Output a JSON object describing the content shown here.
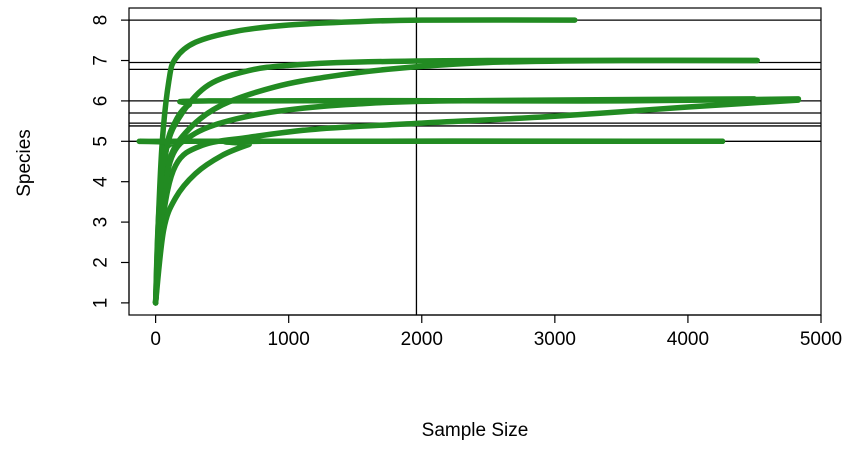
{
  "chart_data": {
    "type": "line",
    "title": "",
    "xlabel": "Sample Size",
    "ylabel": "Species",
    "xlim": [
      -200,
      5000
    ],
    "ylim": [
      0.7,
      8.3
    ],
    "x_ticks": [
      0,
      1000,
      2000,
      3000,
      4000,
      5000
    ],
    "y_ticks": [
      1,
      2,
      3,
      4,
      5,
      6,
      7,
      8
    ],
    "grid": false,
    "line_color": "#228B22",
    "reference_lines": {
      "vertical_x": [
        1960
      ],
      "horizontal_y": [
        8,
        6.95,
        6.78,
        6.0,
        5.7,
        5.45,
        5.38,
        5.0
      ]
    },
    "series": [
      {
        "max_x": 3150,
        "values": [
          [
            0,
            1
          ],
          [
            20,
            3
          ],
          [
            50,
            5
          ],
          [
            100,
            6.5
          ],
          [
            150,
            7.05
          ],
          [
            300,
            7.45
          ],
          [
            600,
            7.72
          ],
          [
            1000,
            7.88
          ],
          [
            1500,
            7.96
          ],
          [
            2000,
            8.0
          ],
          [
            3150,
            8.0
          ]
        ]
      },
      {
        "max_x": 4520,
        "values": [
          [
            0,
            1
          ],
          [
            30,
            3
          ],
          [
            80,
            4.8
          ],
          [
            200,
            5.7
          ],
          [
            400,
            6.4
          ],
          [
            700,
            6.75
          ],
          [
            1000,
            6.88
          ],
          [
            1500,
            6.96
          ],
          [
            2500,
            7.0
          ],
          [
            4520,
            7.0
          ]
        ]
      },
      {
        "max_x": 4520,
        "values": [
          [
            0,
            1
          ],
          [
            40,
            3
          ],
          [
            100,
            4.5
          ],
          [
            250,
            5.3
          ],
          [
            500,
            5.9
          ],
          [
            900,
            6.35
          ],
          [
            1300,
            6.6
          ],
          [
            1800,
            6.8
          ],
          [
            2500,
            6.95
          ],
          [
            3500,
            7.0
          ],
          [
            4520,
            7.0
          ]
        ]
      },
      {
        "max_x": 4830,
        "values": [
          [
            0,
            1
          ],
          [
            30,
            3
          ],
          [
            80,
            4.8
          ],
          [
            150,
            5.5
          ],
          [
            250,
            5.9
          ],
          [
            400,
            6.0
          ],
          [
            2700,
            6.0
          ],
          [
            3500,
            6.0
          ],
          [
            4830,
            6.05
          ]
        ]
      },
      {
        "max_x": 4830,
        "values": [
          [
            0,
            1
          ],
          [
            50,
            3
          ],
          [
            150,
            4.4
          ],
          [
            350,
            4.9
          ],
          [
            700,
            5.1
          ],
          [
            1200,
            5.3
          ],
          [
            2000,
            5.45
          ],
          [
            3000,
            5.62
          ],
          [
            4000,
            5.85
          ],
          [
            4830,
            6.02
          ]
        ]
      },
      {
        "max_x": 4500,
        "values": [
          [
            0,
            1
          ],
          [
            40,
            3
          ],
          [
            120,
            4.6
          ],
          [
            300,
            5.2
          ],
          [
            600,
            5.55
          ],
          [
            1000,
            5.78
          ],
          [
            1500,
            5.92
          ],
          [
            2200,
            6.0
          ],
          [
            4500,
            6.05
          ]
        ]
      },
      {
        "max_x": 4260,
        "values": [
          [
            0,
            1
          ],
          [
            20,
            3
          ],
          [
            60,
            4.6
          ],
          [
            120,
            4.95
          ],
          [
            200,
            5.0
          ],
          [
            4260,
            5.0
          ]
        ]
      },
      {
        "max_x": 4260,
        "values": [
          [
            0,
            1
          ],
          [
            60,
            2.8
          ],
          [
            150,
            3.6
          ],
          [
            300,
            4.2
          ],
          [
            500,
            4.65
          ],
          [
            700,
            4.92
          ],
          [
            800,
            5.0
          ],
          [
            4260,
            5.0
          ]
        ]
      }
    ]
  }
}
